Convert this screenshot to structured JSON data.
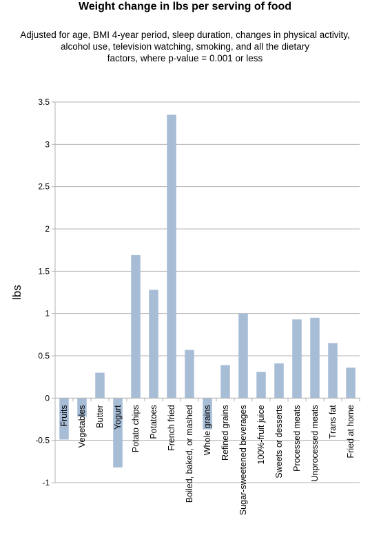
{
  "chart_data": {
    "type": "bar",
    "title": "Weight change in lbs per serving of food",
    "subtitle": [
      "Adjusted for age, BMI 4-year period, sleep duration, changes in physical activity,",
      "alcohol use, television watching, smoking, and all the dietary",
      "factors, where p-value = 0.001 or less"
    ],
    "xlabel": "",
    "ylabel": "lbs",
    "ylim": [
      -1,
      3.5
    ],
    "yticks": [
      "-1",
      "-0.5",
      "0",
      "0.5",
      "1",
      "1.5",
      "2",
      "2.5",
      "3",
      "3.5"
    ],
    "grid": true,
    "legend": "none",
    "bar_color": "#a7bdd6",
    "categories": [
      "Fruits",
      "Vegetables",
      "Butter",
      "Yogurt",
      "Potato chips",
      "Potatoes",
      "French fried",
      "Boiled, baked, or mashed",
      "Whole grains",
      "Refined grains",
      "Sugar-sweetened beverages",
      "100%-fruit juice",
      "Sweets or desserts",
      "Processed meats",
      "Unprocessed meats",
      "Trans fat",
      "Fried at home"
    ],
    "values": [
      -0.49,
      -0.22,
      0.3,
      -0.82,
      1.69,
      1.28,
      3.35,
      0.57,
      -0.37,
      0.39,
      1.0,
      0.31,
      0.41,
      0.93,
      0.95,
      0.65,
      0.36
    ]
  }
}
